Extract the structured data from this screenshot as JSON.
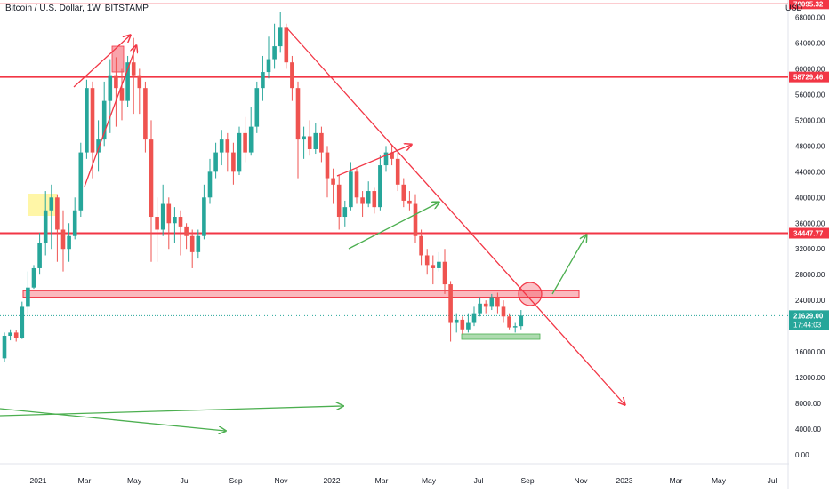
{
  "header": {
    "symbol_line": "Bitcoin / U.S. Dollar, 1W, BITSTAMP",
    "currency": "USD"
  },
  "price_labels": {
    "top_line": "70095.32",
    "upper_line": "58729.46",
    "middle_line": "34447.77",
    "current_price": "21629.00",
    "countdown": "17:44:03"
  },
  "colors": {
    "up": "#26a69a",
    "down": "#ef5350",
    "resistance": "#f23645",
    "trend_up": "#4caf50",
    "trend_down": "#f23645",
    "highlight_yellow": "#fff59d",
    "current_price_bg": "#26a69a"
  },
  "chart_data": {
    "type": "candlestick",
    "title": "Bitcoin / U.S. Dollar, 1W, BITSTAMP",
    "ylim": [
      -2000,
      73000
    ],
    "y_ticks": [
      "0.00",
      "4000.00",
      "8000.00",
      "12000.00",
      "16000.00",
      "20000.00",
      "24000.00",
      "28000.00",
      "32000.00",
      "36000.00",
      "40000.00",
      "44000.00",
      "48000.00",
      "52000.00",
      "56000.00",
      "60000.00",
      "64000.00",
      "68000.00"
    ],
    "x_ticks": [
      "2021",
      "Mar",
      "May",
      "Jul",
      "Sep",
      "Nov",
      "2022",
      "Mar",
      "May",
      "Jul",
      "Sep",
      "Nov",
      "2023",
      "Mar",
      "May",
      "Jul"
    ],
    "grid": false,
    "horizontal_levels": [
      70095.32,
      58729.46,
      34447.77
    ],
    "support_zone": [
      24500,
      25500
    ],
    "current_price": 21629.0,
    "candles": [
      [
        15000,
        18500,
        14500,
        19000
      ],
      [
        18500,
        19000,
        17800,
        19500
      ],
      [
        19000,
        18200,
        17600,
        19400
      ],
      [
        18200,
        23000,
        18000,
        23800
      ],
      [
        23000,
        26000,
        22000,
        28500
      ],
      [
        26000,
        29000,
        25800,
        29500
      ],
      [
        29000,
        33000,
        28000,
        34500
      ],
      [
        33000,
        38000,
        31000,
        41000
      ],
      [
        38000,
        40000,
        32000,
        42000
      ],
      [
        40000,
        35000,
        30000,
        40500
      ],
      [
        35000,
        32000,
        28500,
        38000
      ],
      [
        32000,
        34000,
        30000,
        36000
      ],
      [
        34000,
        38000,
        33500,
        40000
      ],
      [
        38000,
        47000,
        37000,
        48500
      ],
      [
        47000,
        57000,
        46000,
        58300
      ],
      [
        57000,
        47000,
        43000,
        58000
      ],
      [
        47000,
        49000,
        44000,
        52000
      ],
      [
        49000,
        55000,
        48000,
        58000
      ],
      [
        55000,
        59000,
        50000,
        61500
      ],
      [
        59000,
        57000,
        51000,
        61800
      ],
      [
        57000,
        55000,
        52000,
        60000
      ],
      [
        55000,
        61000,
        54000,
        62000
      ],
      [
        61000,
        59000,
        53000,
        64800
      ],
      [
        59000,
        57000,
        53000,
        60000
      ],
      [
        57000,
        49000,
        47000,
        58000
      ],
      [
        49000,
        37000,
        30000,
        52000
      ],
      [
        37000,
        35000,
        30000,
        40000
      ],
      [
        35000,
        39000,
        34000,
        42000
      ],
      [
        39000,
        36000,
        32000,
        40000
      ],
      [
        36000,
        37000,
        33000,
        38500
      ],
      [
        37000,
        35500,
        31000,
        38000
      ],
      [
        35500,
        34000,
        32000,
        36000
      ],
      [
        34000,
        31500,
        29000,
        35000
      ],
      [
        31500,
        34000,
        30500,
        35000
      ],
      [
        34000,
        40000,
        33500,
        42000
      ],
      [
        40000,
        44000,
        39000,
        46000
      ],
      [
        44000,
        47000,
        43000,
        48500
      ],
      [
        47000,
        49000,
        45000,
        50500
      ],
      [
        49000,
        47000,
        44000,
        50000
      ],
      [
        47000,
        44000,
        42000,
        48500
      ],
      [
        44000,
        50000,
        43500,
        51000
      ],
      [
        50000,
        47000,
        45500,
        52500
      ],
      [
        47000,
        51000,
        46500,
        54000
      ],
      [
        51000,
        57000,
        50000,
        58000
      ],
      [
        57000,
        59500,
        55000,
        62000
      ],
      [
        59500,
        61500,
        58500,
        65000
      ],
      [
        61500,
        63500,
        60000,
        67000
      ],
      [
        63500,
        66500,
        62500,
        68789
      ],
      [
        66500,
        61000,
        60000,
        67000
      ],
      [
        61000,
        57000,
        55000,
        62000
      ],
      [
        57000,
        49000,
        43000,
        58000
      ],
      [
        49000,
        49500,
        46000,
        51000
      ],
      [
        49500,
        47500,
        46500,
        52000
      ],
      [
        47500,
        50000,
        46800,
        51500
      ],
      [
        50000,
        47000,
        45500,
        51000
      ],
      [
        47000,
        43000,
        40000,
        48000
      ],
      [
        43000,
        42000,
        39000,
        44500
      ],
      [
        42000,
        37000,
        35000,
        43500
      ],
      [
        37000,
        38500,
        35500,
        39500
      ],
      [
        38500,
        44000,
        38000,
        45500
      ],
      [
        44000,
        40000,
        39000,
        44500
      ],
      [
        40000,
        39000,
        37000,
        41000
      ],
      [
        39000,
        41000,
        38500,
        42500
      ],
      [
        41000,
        38500,
        37500,
        41500
      ],
      [
        38500,
        45000,
        38000,
        46500
      ],
      [
        45000,
        47000,
        44000,
        48000
      ],
      [
        47000,
        46000,
        45000,
        48200
      ],
      [
        46000,
        42000,
        41000,
        47500
      ],
      [
        42000,
        39500,
        38500,
        43000
      ],
      [
        39500,
        39000,
        38000,
        41000
      ],
      [
        39000,
        34000,
        33000,
        40500
      ],
      [
        34000,
        31000,
        29500,
        35000
      ],
      [
        31000,
        29500,
        28000,
        32000
      ],
      [
        29500,
        29000,
        26500,
        31000
      ],
      [
        29000,
        30000,
        28500,
        31500
      ],
      [
        30000,
        26500,
        25000,
        32000
      ],
      [
        26500,
        20500,
        17600,
        27000
      ],
      [
        20500,
        21000,
        19000,
        22000
      ],
      [
        21000,
        19500,
        18800,
        21500
      ],
      [
        19500,
        20500,
        19000,
        22000
      ],
      [
        20500,
        22000,
        20000,
        23000
      ],
      [
        22000,
        23500,
        21500,
        24500
      ],
      [
        23500,
        23000,
        22000,
        24000
      ],
      [
        23000,
        24500,
        22500,
        25000
      ],
      [
        24500,
        23000,
        22000,
        25200
      ],
      [
        23000,
        21500,
        20500,
        24000
      ],
      [
        21500,
        19800,
        19500,
        22000
      ],
      [
        19800,
        20000,
        19000,
        20500
      ],
      [
        20000,
        21629,
        19500,
        22500
      ]
    ]
  }
}
